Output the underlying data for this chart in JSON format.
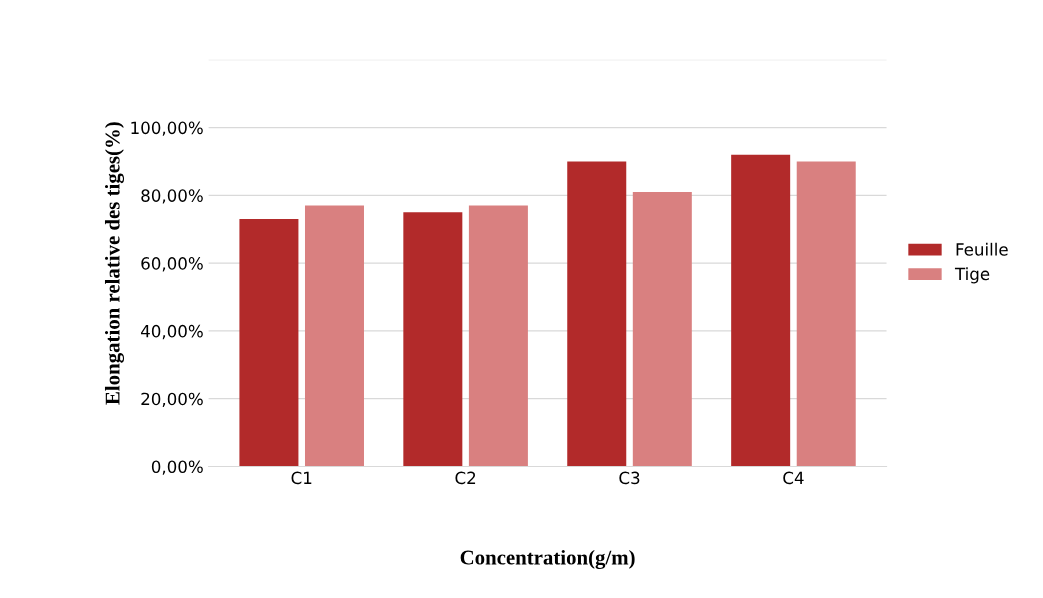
{
  "chart_data": {
    "type": "bar",
    "xlabel": "Concentration(g/m)",
    "ylabel": "Elongation relative des tiges(%)",
    "categories": [
      "C1",
      "C2",
      "C3",
      "C4"
    ],
    "series": [
      {
        "name": "Feuille",
        "color": "#b22a2a",
        "values": [
          73,
          75,
          90,
          92
        ]
      },
      {
        "name": "Tige",
        "color": "#d98080",
        "values": [
          77,
          77,
          81,
          90
        ]
      }
    ],
    "ylim": [
      0,
      120
    ],
    "yticks": [
      {
        "value": 0,
        "label": "0,00%"
      },
      {
        "value": 20,
        "label": "20,00%"
      },
      {
        "value": 40,
        "label": "40,00%"
      },
      {
        "value": 60,
        "label": "60,00%"
      },
      {
        "value": 80,
        "label": "80,00%"
      },
      {
        "value": 100,
        "label": "100,00%"
      },
      {
        "value": 120,
        "label": null
      }
    ],
    "grid": "y",
    "legend": "right"
  }
}
